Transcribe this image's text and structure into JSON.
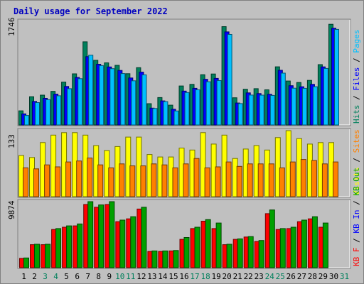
{
  "title": "Daily usage for September 2022",
  "colors": {
    "title": "#0000c0",
    "hits": "#00805c",
    "files": "#0000ff",
    "pages": "#00c0ff",
    "visits": "#ffff00",
    "sites": "#ff8000",
    "kb_in": "#0000ff",
    "kb_out": "#00a000",
    "kb_f": "#ff0000",
    "weekend_label": "#00805c",
    "panel_bg": "#c0c0c0"
  },
  "chart_data": [
    {
      "type": "bar",
      "panel": "hits-files-pages",
      "ymax_label": "1746",
      "ylim": [
        0,
        1746
      ],
      "categories": [
        "1",
        "2",
        "3",
        "4",
        "5",
        "6",
        "7",
        "8",
        "9",
        "10",
        "11",
        "12",
        "13",
        "14",
        "15",
        "16",
        "17",
        "18",
        "19",
        "20",
        "21",
        "22",
        "23",
        "24",
        "25",
        "26",
        "27",
        "28",
        "29",
        "30",
        "31"
      ],
      "legend": [
        {
          "text": "Hits",
          "color": "#00805c"
        },
        {
          "text": " / ",
          "color": "#000000"
        },
        {
          "text": "Files",
          "color": "#0000ff"
        },
        {
          "text": " / ",
          "color": "#000000"
        },
        {
          "text": "Pages",
          "color": "#00c0ff"
        }
      ],
      "series": [
        {
          "name": "Hits",
          "color": "#00805c",
          "values": [
            238,
            476,
            502,
            566,
            722,
            861,
            1400,
            1090,
            1046,
            1005,
            864,
            965,
            359,
            462,
            334,
            657,
            684,
            847,
            859,
            1656,
            458,
            602,
            611,
            592,
            979,
            740,
            715,
            751,
            1017,
            1696,
            0
          ]
        },
        {
          "name": "Files",
          "color": "#0000ff",
          "values": [
            186,
            396,
            448,
            519,
            648,
            800,
            1151,
            1022,
            977,
            919,
            792,
            890,
            283,
            405,
            264,
            570,
            617,
            769,
            785,
            1568,
            370,
            541,
            528,
            517,
            921,
            661,
            643,
            684,
            978,
            1630,
            0
          ]
        },
        {
          "name": "Pages",
          "color": "#00c0ff",
          "values": [
            160,
            377,
            426,
            492,
            611,
            780,
            1176,
            1000,
            948,
            866,
            744,
            844,
            278,
            393,
            236,
            546,
            592,
            728,
            747,
            1525,
            360,
            503,
            502,
            498,
            873,
            620,
            617,
            645,
            952,
            1610,
            0
          ]
        }
      ]
    },
    {
      "type": "bar",
      "panel": "visits-sites",
      "ymax_label": "133",
      "ylim": [
        0,
        133
      ],
      "categories": [
        "1",
        "2",
        "3",
        "4",
        "5",
        "6",
        "7",
        "8",
        "9",
        "10",
        "11",
        "12",
        "13",
        "14",
        "15",
        "16",
        "17",
        "18",
        "19",
        "20",
        "21",
        "22",
        "23",
        "24",
        "25",
        "26",
        "27",
        "28",
        "29",
        "30",
        "31"
      ],
      "legend": [
        {
          "text": "Visits",
          "color": "#ffff00"
        },
        {
          "text": " / ",
          "color": "#000000"
        },
        {
          "text": "Sites",
          "color": "#ff8000"
        }
      ],
      "series": [
        {
          "name": "Visits",
          "color": "#ffff00",
          "values": [
            83,
            79,
            109,
            124,
            129,
            129,
            124,
            103,
            93,
            101,
            120,
            120,
            85,
            80,
            80,
            98,
            94,
            129,
            106,
            124,
            77,
            96,
            103,
            94,
            119,
            133,
            117,
            106,
            109,
            109,
            0
          ]
        },
        {
          "name": "Sites",
          "color": "#ff8000",
          "values": [
            58,
            56,
            64,
            60,
            70,
            72,
            78,
            64,
            58,
            66,
            62,
            62,
            66,
            64,
            58,
            66,
            77,
            58,
            60,
            70,
            61,
            66,
            66,
            66,
            58,
            70,
            75,
            73,
            66,
            70,
            0
          ]
        }
      ]
    },
    {
      "type": "bar",
      "panel": "kb",
      "ymax_label": "9874",
      "ylim": [
        0,
        9874
      ],
      "categories": [
        "1",
        "2",
        "3",
        "4",
        "5",
        "6",
        "7",
        "8",
        "9",
        "10",
        "11",
        "12",
        "13",
        "14",
        "15",
        "16",
        "17",
        "18",
        "19",
        "20",
        "21",
        "22",
        "23",
        "24",
        "25",
        "26",
        "27",
        "28",
        "29",
        "30",
        "31"
      ],
      "legend": [
        {
          "text": "KB F",
          "color": "#ff0000"
        },
        {
          "text": " / ",
          "color": "#000000"
        },
        {
          "text": "KB In",
          "color": "#0000ff"
        },
        {
          "text": " / ",
          "color": "#000000"
        },
        {
          "text": "KB Out",
          "color": "#00a000"
        }
      ],
      "series": [
        {
          "name": "KB F",
          "color": "#ff0000",
          "values": [
            1390,
            3439,
            3439,
            5708,
            6050,
            6258,
            9454,
            9037,
            9454,
            6884,
            7302,
            8772,
            2435,
            2435,
            2504,
            4237,
            5855,
            6953,
            5855,
            3439,
            4237,
            4586,
            3919,
            8077,
            5708,
            5855,
            6884,
            7302,
            6050,
            0,
            0
          ]
        },
        {
          "name": "KB In",
          "color": "#0000ff",
          "values": [
            0,
            0,
            0,
            0,
            0,
            0,
            0,
            0,
            0,
            0,
            0,
            0,
            0,
            0,
            0,
            0,
            0,
            0,
            0,
            0,
            0,
            0,
            0,
            0,
            0,
            0,
            0,
            0,
            0,
            0,
            0
          ]
        },
        {
          "name": "KB Out",
          "color": "#00a000",
          "values": [
            1459,
            3508,
            3508,
            5855,
            6258,
            6538,
            9872,
            9384,
            9872,
            7114,
            7622,
            9037,
            2504,
            2504,
            2574,
            4517,
            6050,
            7192,
            6677,
            3508,
            4307,
            4655,
            4069,
            8635,
            5855,
            6050,
            7114,
            7622,
            6677,
            0,
            0
          ]
        }
      ]
    }
  ],
  "days": [
    {
      "label": "1",
      "weekend": false
    },
    {
      "label": "2",
      "weekend": false
    },
    {
      "label": "3",
      "weekend": true
    },
    {
      "label": "4",
      "weekend": true
    },
    {
      "label": "5",
      "weekend": false
    },
    {
      "label": "6",
      "weekend": false
    },
    {
      "label": "7",
      "weekend": false
    },
    {
      "label": "8",
      "weekend": false
    },
    {
      "label": "9",
      "weekend": false
    },
    {
      "label": "10",
      "weekend": true
    },
    {
      "label": "11",
      "weekend": true
    },
    {
      "label": "12",
      "weekend": false
    },
    {
      "label": "13",
      "weekend": false
    },
    {
      "label": "14",
      "weekend": false
    },
    {
      "label": "15",
      "weekend": false
    },
    {
      "label": "16",
      "weekend": false
    },
    {
      "label": "17",
      "weekend": true
    },
    {
      "label": "18",
      "weekend": true
    },
    {
      "label": "19",
      "weekend": false
    },
    {
      "label": "20",
      "weekend": false
    },
    {
      "label": "21",
      "weekend": false
    },
    {
      "label": "22",
      "weekend": false
    },
    {
      "label": "23",
      "weekend": false
    },
    {
      "label": "24",
      "weekend": true
    },
    {
      "label": "25",
      "weekend": true
    },
    {
      "label": "26",
      "weekend": false
    },
    {
      "label": "27",
      "weekend": false
    },
    {
      "label": "28",
      "weekend": false
    },
    {
      "label": "29",
      "weekend": false
    },
    {
      "label": "30",
      "weekend": false
    },
    {
      "label": "31",
      "weekend": true
    }
  ]
}
